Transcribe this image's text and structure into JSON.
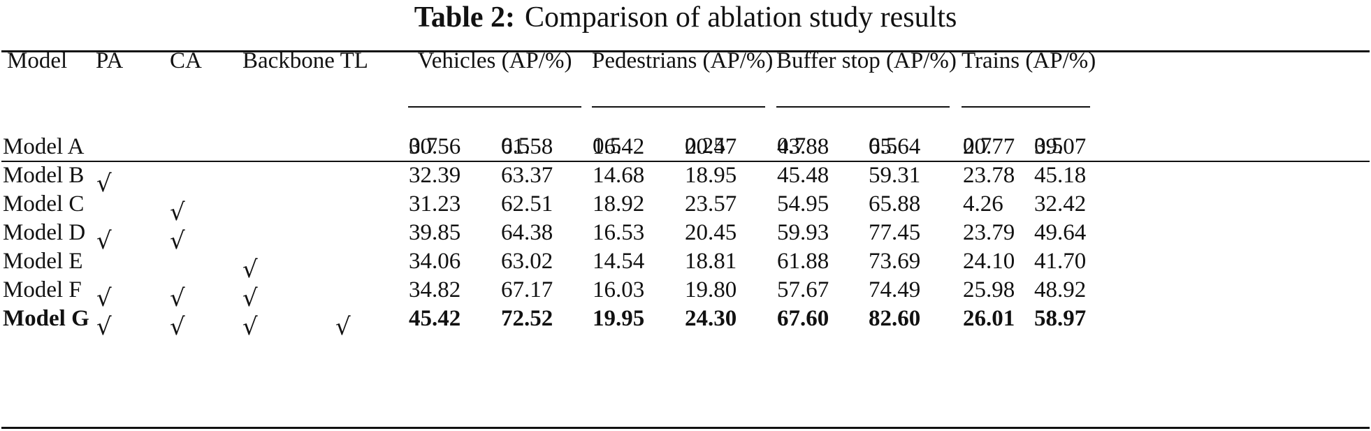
{
  "caption": {
    "label": "Table 2:",
    "text": "Comparison of ablation study results"
  },
  "header": {
    "model": "Model",
    "pa": "PA",
    "ca": "CA",
    "backbone": "Backbone",
    "tl": "TL",
    "groups": [
      {
        "label": "Vehicles (AP/%)",
        "sub": [
          "0.7",
          "0.5"
        ]
      },
      {
        "label": "Pedestrians (AP/%)",
        "sub": [
          "0.5",
          "0.25"
        ]
      },
      {
        "label": "Buffer stop (AP/%)",
        "sub": [
          "0.7",
          "0.5"
        ]
      },
      {
        "label": "Trains (AP/%)",
        "sub": [
          "0.7",
          "0.5"
        ]
      }
    ]
  },
  "check_symbol": "√",
  "rows": [
    {
      "model": "Model A",
      "pa": false,
      "ca": false,
      "backbone": false,
      "tl": false,
      "values": [
        "30.56",
        "61.58",
        "16.42",
        "20.47",
        "43.88",
        "65.64",
        "20.77",
        "39.07"
      ],
      "bold": false
    },
    {
      "model": "Model B",
      "pa": true,
      "ca": false,
      "backbone": false,
      "tl": false,
      "values": [
        "32.39",
        "63.37",
        "14.68",
        "18.95",
        "45.48",
        "59.31",
        "23.78",
        "45.18"
      ],
      "bold": false
    },
    {
      "model": "Model C",
      "pa": false,
      "ca": true,
      "backbone": false,
      "tl": false,
      "values": [
        "31.23",
        "62.51",
        "18.92",
        "23.57",
        "54.95",
        "65.88",
        "4.26",
        "32.42"
      ],
      "bold": false
    },
    {
      "model": "Model D",
      "pa": true,
      "ca": true,
      "backbone": false,
      "tl": false,
      "values": [
        "39.85",
        "64.38",
        "16.53",
        "20.45",
        "59.93",
        "77.45",
        "23.79",
        "49.64"
      ],
      "bold": false
    },
    {
      "model": "Model E",
      "pa": false,
      "ca": false,
      "backbone": true,
      "tl": false,
      "values": [
        "34.06",
        "63.02",
        "14.54",
        "18.81",
        "61.88",
        "73.69",
        "24.10",
        "41.70"
      ],
      "bold": false
    },
    {
      "model": "Model F",
      "pa": true,
      "ca": true,
      "backbone": true,
      "tl": false,
      "values": [
        "34.82",
        "67.17",
        "16.03",
        "19.80",
        "57.67",
        "74.49",
        "25.98",
        "48.92"
      ],
      "bold": false
    },
    {
      "model": "Model G",
      "pa": true,
      "ca": true,
      "backbone": true,
      "tl": true,
      "values": [
        "45.42",
        "72.52",
        "19.95",
        "24.30",
        "67.60",
        "82.60",
        "26.01",
        "58.97"
      ],
      "bold": true
    }
  ]
}
